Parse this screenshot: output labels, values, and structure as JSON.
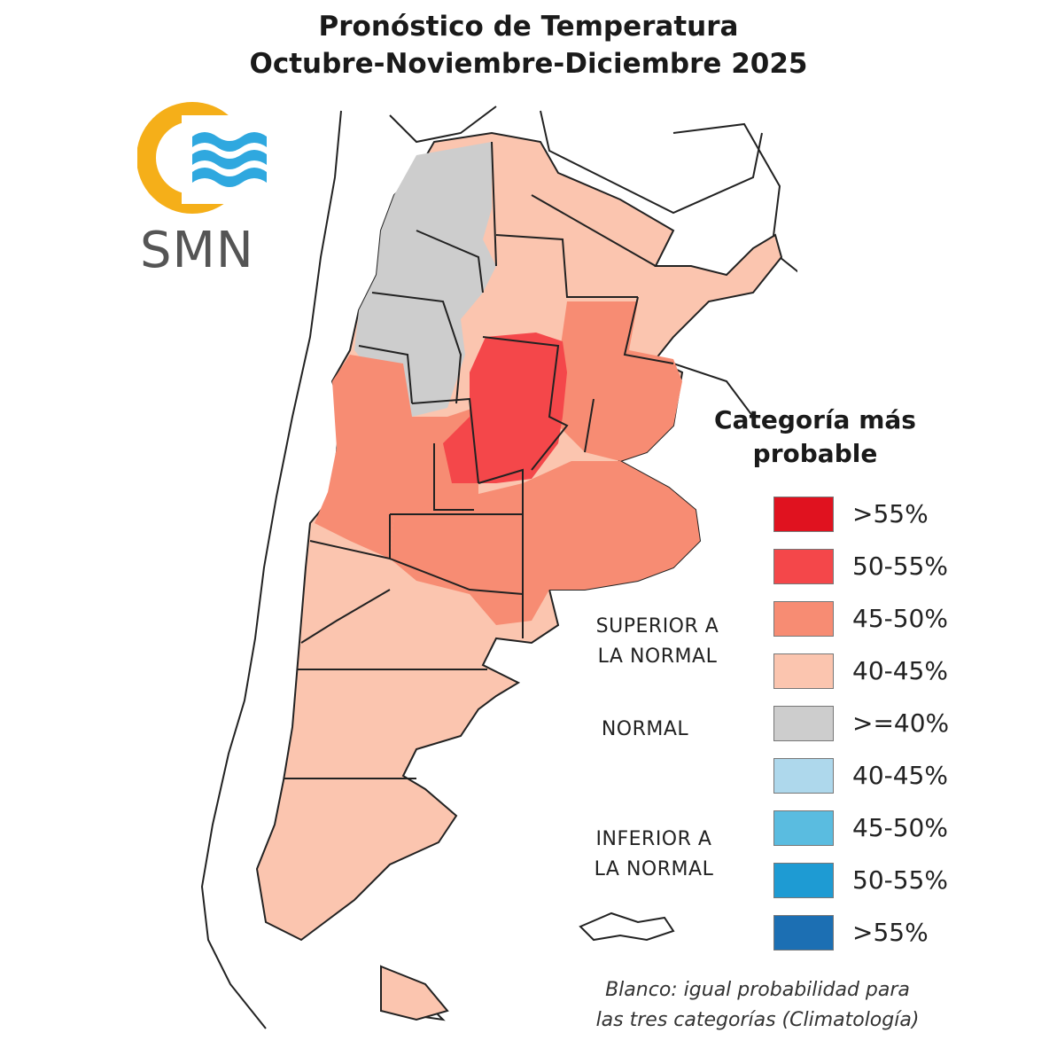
{
  "title": {
    "line1": "Pronóstico de Temperatura",
    "line2": "Octubre-Noviembre-Diciembre 2025"
  },
  "logo": {
    "text": "SMN",
    "colors": {
      "ring": "#F5AF19",
      "waves": "#2FA8DF"
    }
  },
  "legend": {
    "title_line1": "Categoría más",
    "title_line2": "probable",
    "items": [
      {
        "label": ">55%",
        "color": "#E0121F"
      },
      {
        "label": "50-55%",
        "color": "#F4474A"
      },
      {
        "label": "45-50%",
        "color": "#F78C73"
      },
      {
        "label": "40-45%",
        "color": "#FBC5AF"
      },
      {
        "label": ">=40%",
        "color": "#CDCDCD"
      },
      {
        "label": "40-45%",
        "color": "#AED8EC"
      },
      {
        "label": "45-50%",
        "color": "#5ABCE0"
      },
      {
        "label": "50-55%",
        "color": "#1E9BD3"
      },
      {
        "label": ">55%",
        "color": "#1C6FB3"
      }
    ],
    "categories": {
      "superior_line1": "SUPERIOR A",
      "superior_line2": "LA NORMAL",
      "normal": "NORMAL",
      "inferior_line1": "INFERIOR A",
      "inferior_line2": "LA NORMAL"
    }
  },
  "note": {
    "line1": "Blanco: igual probabilidad para",
    "line2": "las tres categorías (Climatología)"
  }
}
